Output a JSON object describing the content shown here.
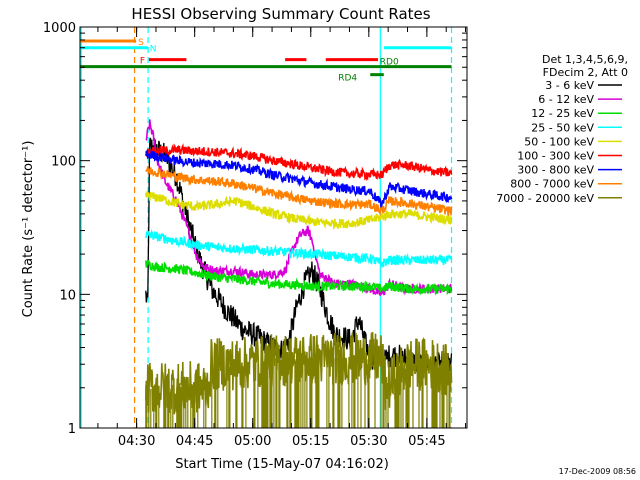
{
  "chart_data": {
    "type": "line",
    "title": "HESSI Observing Summary Count Rates",
    "xlabel": "Start Time (15-May-07 04:16:02)",
    "ylabel": "Count Rate (s⁻¹ detector⁻¹)",
    "x_unit": "minutes after 04:16:02",
    "xlim": [
      0,
      100
    ],
    "ylim": [
      1,
      1000
    ],
    "yscale": "log",
    "x_ticks": [
      {
        "pos": 14.63,
        "label": "04:30"
      },
      {
        "pos": 29.63,
        "label": "04:45"
      },
      {
        "pos": 44.63,
        "label": "05:00"
      },
      {
        "pos": 59.63,
        "label": "05:15"
      },
      {
        "pos": 74.63,
        "label": "05:30"
      },
      {
        "pos": 89.63,
        "label": "05:45"
      }
    ],
    "y_ticks": [
      {
        "value": 1,
        "label": "1"
      },
      {
        "value": 10,
        "label": "10"
      },
      {
        "value": 100,
        "label": "100"
      },
      {
        "value": 1000,
        "label": "1000"
      }
    ],
    "legend": {
      "placement": "right",
      "header": [
        "Det 1,3,4,5,6,9,",
        "FDecim 2, Att 0"
      ]
    },
    "series": [
      {
        "name": "3 - 6 keV",
        "color": "#000000",
        "x": [
          17,
          17.5,
          18,
          20,
          22,
          25,
          28,
          31,
          34,
          38,
          42,
          46,
          50,
          52,
          54,
          56,
          58,
          60,
          62,
          64,
          66,
          68,
          70,
          72,
          74,
          76,
          78,
          80,
          82,
          85,
          88,
          90,
          93,
          96
        ],
        "y": [
          10,
          8,
          130,
          120,
          110,
          75,
          35,
          18,
          11,
          7.5,
          5.5,
          4.8,
          4,
          3.8,
          4.5,
          8,
          12,
          15,
          11,
          7,
          5,
          4.8,
          4.5,
          6.5,
          4,
          3.2,
          3,
          3.5,
          3.5,
          3.2,
          3,
          3,
          3,
          3
        ]
      },
      {
        "name": "6 - 12 keV",
        "color": "#d800d8",
        "x": [
          17,
          18,
          19,
          20,
          22,
          25,
          28,
          30,
          32,
          35,
          40,
          45,
          50,
          53,
          55,
          57,
          59,
          60,
          62,
          64,
          66,
          70,
          75,
          78,
          80,
          84,
          88,
          92,
          96
        ],
        "y": [
          140,
          190,
          150,
          100,
          70,
          50,
          30,
          20,
          16,
          15,
          15,
          14,
          14,
          15,
          22,
          28,
          30,
          25,
          14,
          13,
          12,
          12,
          11,
          10,
          12,
          11,
          11,
          11,
          11
        ]
      },
      {
        "name": "12 - 25 keV",
        "color": "#00dd00",
        "x": [
          17,
          20,
          25,
          30,
          35,
          40,
          45,
          50,
          55,
          60,
          65,
          70,
          75,
          78,
          80,
          85,
          90,
          96
        ],
        "y": [
          17,
          16,
          15.5,
          14.5,
          13.5,
          13,
          12.5,
          12,
          11.8,
          11.5,
          11.5,
          11.5,
          11.5,
          11,
          11.5,
          11,
          11,
          11
        ]
      },
      {
        "name": "25 - 50 keV",
        "color": "#00ffff",
        "x": [
          17,
          20,
          25,
          30,
          35,
          40,
          45,
          50,
          55,
          60,
          65,
          70,
          75,
          78,
          80,
          85,
          90,
          96
        ],
        "y": [
          28,
          27,
          25,
          23.5,
          22.5,
          22,
          21.5,
          21,
          20.5,
          20,
          19.5,
          19,
          18.5,
          17,
          18,
          18,
          18,
          18
        ]
      },
      {
        "name": "50 - 100 keV",
        "color": "#dddd00",
        "x": [
          17,
          20,
          25,
          30,
          35,
          40,
          45,
          50,
          55,
          60,
          65,
          70,
          75,
          78,
          80,
          85,
          90,
          96
        ],
        "y": [
          55,
          53,
          48,
          45,
          47,
          50,
          45,
          40,
          37,
          35,
          34,
          34,
          36,
          38,
          40,
          40,
          38,
          36
        ]
      },
      {
        "name": "100 - 300 keV",
        "color": "#ff0000",
        "x": [
          17,
          20,
          25,
          30,
          35,
          40,
          45,
          50,
          55,
          60,
          65,
          70,
          75,
          78,
          80,
          85,
          90,
          96
        ],
        "y": [
          115,
          118,
          120,
          118,
          116,
          113,
          108,
          100,
          94,
          88,
          83,
          80,
          79,
          78,
          93,
          92,
          85,
          80
        ]
      },
      {
        "name": "300 - 800 keV",
        "color": "#0000ff",
        "x": [
          17,
          20,
          25,
          30,
          35,
          40,
          45,
          50,
          55,
          60,
          65,
          70,
          75,
          78,
          80,
          85,
          90,
          96
        ],
        "y": [
          112,
          108,
          100,
          96,
          95,
          92,
          86,
          78,
          73,
          68,
          64,
          61,
          59,
          47,
          64,
          60,
          56,
          53
        ]
      },
      {
        "name": "800 - 7000 keV",
        "color": "#ff8000",
        "x": [
          17,
          20,
          25,
          30,
          35,
          40,
          45,
          50,
          55,
          60,
          65,
          70,
          75,
          78,
          80,
          85,
          90,
          96
        ],
        "y": [
          85,
          82,
          76,
          72,
          70,
          67,
          62,
          57,
          53,
          50,
          48,
          47,
          47,
          42,
          50,
          48,
          45,
          42
        ]
      },
      {
        "name": "7000 - 20000 keV",
        "color": "#808000",
        "x": [
          17,
          25,
          33,
          34,
          40,
          50,
          60,
          70,
          78,
          79,
          85,
          92,
          96
        ],
        "y": [
          2,
          2,
          2,
          3,
          3,
          3.2,
          3.3,
          3.3,
          3.3,
          2,
          3,
          3,
          2.5
        ]
      }
    ],
    "annotations": [
      {
        "type": "vline",
        "x": 14.1,
        "color": "#ff8000",
        "dash": true
      },
      {
        "type": "vline",
        "x": 17.6,
        "color": "#00ffff",
        "dash": true
      },
      {
        "type": "vline",
        "x": 77.6,
        "color": "#00ffff",
        "dash": false
      },
      {
        "type": "vline",
        "x": 96.0,
        "color": "#00ffff",
        "dash": true
      },
      {
        "type": "vline",
        "x": 0.3,
        "color": "#00ffff",
        "dash": false
      },
      {
        "type": "hbar",
        "x0": 0,
        "x1": 14.5,
        "y": 785,
        "color": "#ff8000",
        "label": "S"
      },
      {
        "type": "hbar",
        "x0": 0,
        "x1": 17.5,
        "y": 700,
        "color": "#00ffff",
        "label": "N"
      },
      {
        "type": "hbar",
        "x0": 78.5,
        "x1": 96,
        "y": 700,
        "color": "#00ffff"
      },
      {
        "type": "hbar",
        "x0": 0,
        "x1": 96,
        "y": 505,
        "color": "#008000",
        "label": "RD0"
      },
      {
        "type": "hbar",
        "x0": 75,
        "x1": 78.5,
        "y": 440,
        "color": "#008000",
        "label": "RD4"
      },
      {
        "type": "hbar",
        "x0": 17.8,
        "x1": 27.5,
        "y": 570,
        "color": "#ff0000",
        "label": "F"
      },
      {
        "type": "hbar",
        "x0": 53,
        "x1": 58.5,
        "y": 570,
        "color": "#ff0000"
      },
      {
        "type": "hbar",
        "x0": 63.5,
        "x1": 77,
        "y": 570,
        "color": "#ff0000"
      }
    ],
    "footer_date": "17-Dec-2009 08:56"
  }
}
